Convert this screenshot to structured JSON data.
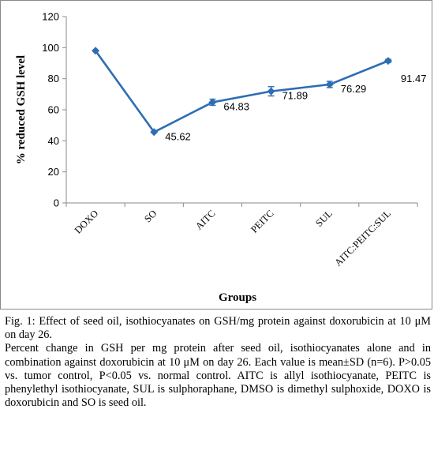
{
  "chart_data": {
    "type": "line",
    "categories": [
      "DOXO",
      "SO",
      "AITC",
      "PEITC",
      "SUL",
      "AITC:PEITC:SUL"
    ],
    "values": [
      98,
      45.62,
      64.83,
      71.89,
      76.29,
      91.47
    ],
    "errors": [
      0,
      0,
      2,
      3,
      2,
      1
    ],
    "data_labels": [
      "",
      "45.62",
      "64.83",
      "71.89",
      "76.29",
      "91.47"
    ],
    "ylim": [
      0,
      120
    ],
    "yticks": [
      0,
      20,
      40,
      60,
      80,
      100,
      120
    ],
    "ytick_labels": [
      "0",
      "20",
      "40",
      "60",
      "80",
      "100",
      "120"
    ],
    "xlabel": "Groups",
    "ylabel": "% reduced GSH level",
    "line_color": "#2e6db4",
    "grid": false,
    "legend": "none"
  },
  "caption": {
    "title": "Fig. 1: Effect of seed oil, isothiocyanates on GSH/mg protein against doxorubicin at 10 μM on day 26.",
    "body": "Percent change in GSH per mg protein after seed oil, isothiocyanates alone and in combination against doxorubicin at 10 μM on day 26. Each value is mean±SD (n=6). P>0.05 vs. tumor control, P<0.05 vs. normal control. AITC is allyl isothiocyanate, PEITC is phenylethyl isothiocyanate, SUL is sulphoraphane, DMSO is dimethyl sulphoxide, DOXO is doxorubicin and SO is seed oil."
  }
}
